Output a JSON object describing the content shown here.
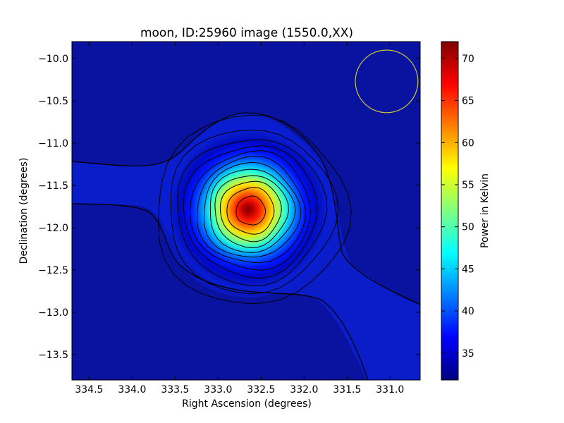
{
  "chart_data": {
    "type": "heatmap",
    "title": "moon, ID:25960 image (1550.0,XX)",
    "xlabel": "Right Ascension (degrees)",
    "ylabel": "Declination (degrees)",
    "xlim": [
      334.7,
      330.65
    ],
    "ylim": [
      -13.8,
      -9.8
    ],
    "x_ticks": [
      334.5,
      334.0,
      333.5,
      333.0,
      332.5,
      332.0,
      331.5,
      331.0
    ],
    "x_tick_labels": [
      "334.5",
      "334.0",
      "333.5",
      "333.0",
      "332.5",
      "332.0",
      "331.5",
      "331.0"
    ],
    "y_ticks": [
      -10.0,
      -10.5,
      -11.0,
      -11.5,
      -12.0,
      -12.5,
      -13.0,
      -13.5
    ],
    "y_tick_labels": [
      "−10.0",
      "−10.5",
      "−11.0",
      "−11.5",
      "−12.0",
      "−12.5",
      "−13.0",
      "−13.5"
    ],
    "colorbar": {
      "label": "Power in Kelvin",
      "range": [
        31.8,
        72
      ],
      "ticks": [
        35,
        40,
        45,
        50,
        55,
        60,
        65,
        70
      ],
      "tick_labels": [
        "35",
        "40",
        "45",
        "50",
        "55",
        "60",
        "65",
        "70"
      ],
      "colormap": "jet"
    },
    "source": {
      "center_ra": 332.62,
      "center_dec": -11.8,
      "peak_kelvin": 72,
      "background_kelvin": 33
    },
    "contour_levels": [
      34,
      37,
      40,
      43,
      46,
      49,
      52,
      55,
      58,
      61,
      64,
      67,
      70
    ],
    "beam_circle": {
      "center_ra": 331.04,
      "center_dec": -10.27,
      "radius_deg": 0.37,
      "color": "#c8c832"
    },
    "grid": false,
    "legend": "none"
  }
}
